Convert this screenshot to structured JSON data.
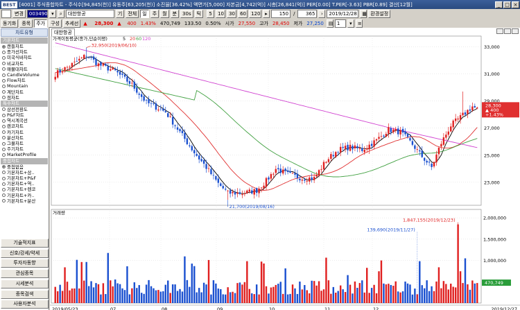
{
  "titlebar": {
    "logo": "BEST",
    "info": "[4001] 주식종합차트 - 주식수[94,845(천)] 유동주[63,205(천)] 소진율[36.42%] 액면가[5,000] 자본금[4,742(억)] 시총[26,841(억)] PER[0.00] T.PER[-3.63] PBR[0.89] 결산[12월]",
    "minimize": "_",
    "maximize": "□",
    "close": "×"
  },
  "toolbar1": {
    "combo1": "",
    "change_label": "변경",
    "code": "003490",
    "stock_name": "대한항공",
    "period_btn": "기",
    "all_btn": "전체",
    "day": "일",
    "week": "주",
    "month": "월",
    "minute": "분",
    "sec30": "30s",
    "tick": "틱",
    "mins": [
      "5",
      "10",
      "30",
      "60",
      "120"
    ],
    "count": "150",
    "total": "365",
    "date": "2019/12/28",
    "env_btn": "환경설정"
  },
  "toolbar2": {
    "chart_label": "동기화",
    "stock_tab": "종목",
    "price_tab": "주가",
    "compose_tab": "구성",
    "trend_tab": "추세선",
    "current_price": "28,300",
    "change": "400",
    "change_pct": "1.43%",
    "volume": "470,749",
    "ratio": "133.50",
    "ratio2": "0.50%",
    "open_label": "시가",
    "open": "27,550",
    "high_label": "고가",
    "high": "28,450",
    "low_label": "저가",
    "low": "27,250",
    "spinner": "1"
  },
  "left_panel": {
    "title": "차트유형",
    "sections": [
      {
        "title": "기본차트",
        "items": [
          "캔들차트",
          "종가선차트",
          "미국식바차트",
          "비교차트",
          "매물대차트",
          "CandleVolume",
          "Flow차트",
          "Mountain",
          "계단차트",
          "점차트"
        ]
      },
      {
        "title": "특수차트",
        "items": [
          "삼선전환도",
          "P&F차트",
          "역시계곡선",
          "렌코차트",
          "카기차트",
          "분산차트",
          "그물차트",
          "주기차트",
          "MarketProfile"
        ]
      },
      {
        "title": "중첩차트",
        "items": [
          "중첩없음",
          "기본차트+삼..",
          "기본차트+P&F",
          "기본차트+역..",
          "기본차트+렌코",
          "기본차트+카..",
          "기본차트+분산"
        ]
      }
    ],
    "selected_chart": "캔들차트",
    "selected_overlay": "중첩없음",
    "buttons": [
      "기술적지표",
      "신호/강세/약세",
      "투자자동향",
      "관심종목",
      "시세분석",
      "종목검색",
      "사용자분석"
    ]
  },
  "chart_data": {
    "type": "candlestick",
    "tab_title": "대한항공",
    "price_legend": "가격이동평균(종가,단순이평)",
    "ma_periods": [
      "5",
      "20",
      "60",
      "120"
    ],
    "ma_colors": {
      "5": "#000000",
      "20": "#e03030",
      "60": "#40a040",
      "120": "#d040d0"
    },
    "up_color": "#e02020",
    "down_color": "#1a50d0",
    "price_axis": [
      "33,000",
      "31,000",
      "29,000",
      "27,000",
      "25,000",
      "23,000"
    ],
    "ylim": [
      21300,
      33800
    ],
    "x_labels": [
      "2019/05/23",
      "07",
      "08",
      "09",
      "10",
      "11",
      "12",
      "2019/12/27"
    ],
    "price_annotations": [
      {
        "label": "32,950(2019/06/10)"
      },
      {
        "label": "21,700(2019/08/16)"
      }
    ],
    "last_price": {
      "price": "28,300",
      "change": "▲ 400",
      "pct": "+1.43%"
    },
    "volume_title": "거래량",
    "volume_axis": [
      "2,000,000",
      "1,500,000",
      "1,000,000"
    ],
    "volume_annotations": [
      {
        "label": "1,847,155(2019/12/23)"
      },
      {
        "label": "139,690(2019/11/27)"
      }
    ],
    "last_volume": "470,749"
  }
}
